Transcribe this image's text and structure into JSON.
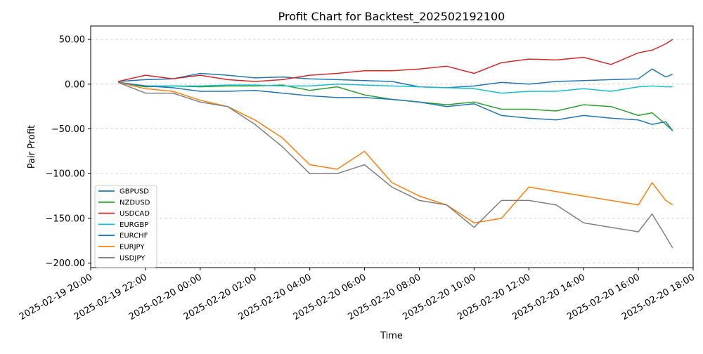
{
  "chart_data": {
    "type": "line",
    "title": "Profit Chart for Backtest_202502192100",
    "xlabel": "Time",
    "ylabel": "Pair Profit",
    "x_range": [
      "2025-02-19 20:00",
      "2025-02-20 18:00"
    ],
    "ylim": [
      -205,
      65
    ],
    "x_ticks": [
      "2025-02-19 20:00",
      "2025-02-19 22:00",
      "2025-02-20 00:00",
      "2025-02-20 02:00",
      "2025-02-20 04:00",
      "2025-02-20 06:00",
      "2025-02-20 08:00",
      "2025-02-20 10:00",
      "2025-02-20 12:00",
      "2025-02-20 14:00",
      "2025-02-20 16:00",
      "2025-02-20 18:00"
    ],
    "y_ticks": [
      50,
      0,
      -50,
      -100,
      -150,
      -200
    ],
    "y_tick_labels": [
      "50.00",
      "0.00",
      "−50.00",
      "−100.00",
      "−150.00",
      "−200.00"
    ],
    "grid": "horizontal dashed",
    "legend_position": "lower-left",
    "x": [
      "2025-02-19 21:00",
      "2025-02-19 22:00",
      "2025-02-19 23:00",
      "2025-02-20 00:00",
      "2025-02-20 01:00",
      "2025-02-20 02:00",
      "2025-02-20 03:00",
      "2025-02-20 04:00",
      "2025-02-20 05:00",
      "2025-02-20 06:00",
      "2025-02-20 07:00",
      "2025-02-20 08:00",
      "2025-02-20 09:00",
      "2025-02-20 10:00",
      "2025-02-20 11:00",
      "2025-02-20 12:00",
      "2025-02-20 13:00",
      "2025-02-20 14:00",
      "2025-02-20 15:00",
      "2025-02-20 16:00",
      "2025-02-20 16:30",
      "2025-02-20 17:00",
      "2025-02-20 17:15"
    ],
    "series": [
      {
        "name": "GBPUSD",
        "color": "#1f77b4",
        "values": [
          3,
          5,
          6,
          12,
          10,
          7,
          8,
          6,
          5,
          4,
          3,
          -3,
          -4,
          -2,
          2,
          0,
          3,
          4,
          5,
          6,
          17,
          8,
          11
        ]
      },
      {
        "name": "NZDUSD",
        "color": "#2ca02c",
        "values": [
          2,
          -3,
          -2,
          -3,
          -2,
          -2,
          -1,
          -7,
          -3,
          -12,
          -17,
          -20,
          -23,
          -20,
          -28,
          -28,
          -30,
          -23,
          -25,
          -35,
          -32,
          -45,
          -52
        ]
      },
      {
        "name": "USDCAD",
        "color": "#d62728",
        "values": [
          3,
          10,
          6,
          10,
          5,
          3,
          5,
          10,
          12,
          15,
          15,
          17,
          20,
          12,
          24,
          28,
          27,
          30,
          22,
          35,
          38,
          45,
          50
        ]
      },
      {
        "name": "EURGBP",
        "color": "#17becf",
        "values": [
          2,
          -2,
          -2,
          -2,
          -1,
          -1,
          -2,
          -2,
          0,
          -1,
          -2,
          -3,
          -4,
          -5,
          -10,
          -8,
          -8,
          -5,
          -8,
          -3,
          -2,
          -3,
          -3
        ]
      },
      {
        "name": "EURCHF",
        "color": "#1f77b4",
        "values": [
          2,
          -2,
          -4,
          -8,
          -8,
          -7,
          -10,
          -13,
          -15,
          -15,
          -17,
          -20,
          -25,
          -22,
          -35,
          -38,
          -40,
          -35,
          -38,
          -40,
          -45,
          -42,
          -52
        ]
      },
      {
        "name": "EURJPY",
        "color": "#ff7f0e",
        "values": [
          2,
          -5,
          -8,
          -18,
          -25,
          -40,
          -60,
          -90,
          -95,
          -75,
          -110,
          -125,
          -135,
          -155,
          -150,
          -115,
          -120,
          -125,
          -130,
          -135,
          -110,
          -130,
          -135
        ]
      },
      {
        "name": "USDJPY",
        "color": "#7f7f7f",
        "values": [
          2,
          -10,
          -10,
          -20,
          -25,
          -45,
          -70,
          -100,
          -100,
          -90,
          -115,
          -130,
          -135,
          -160,
          -130,
          -130,
          -135,
          -155,
          -160,
          -165,
          -145,
          -170,
          -183
        ]
      }
    ]
  }
}
